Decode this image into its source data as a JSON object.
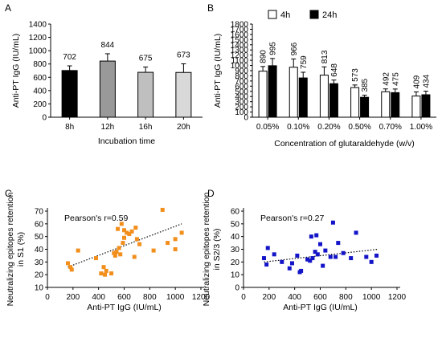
{
  "chart_data": [
    {
      "panel": "A",
      "type": "bar",
      "ylabel": "Anti-PT IgG (IU/mL)",
      "xlabel": "Incubation time",
      "ylim": [
        0,
        1400
      ],
      "yticks": [
        0,
        200,
        400,
        600,
        800,
        1000,
        1200,
        1400
      ],
      "categories": [
        "8h",
        "12h",
        "16h",
        "20h"
      ],
      "values": [
        702,
        844,
        675,
        673
      ],
      "errors": [
        70,
        110,
        80,
        130
      ],
      "colors": [
        "#000000",
        "#999999",
        "#bfbfbf",
        "#d9d9d9"
      ]
    },
    {
      "panel": "B",
      "type": "bar",
      "ylabel": "Anti-PT IgG (IU/mL)",
      "xlabel": "Concentration of glutaraldehyde (w/v)",
      "ylim": [
        0,
        1800
      ],
      "yticks": [
        0,
        100,
        200,
        300,
        400,
        500,
        600,
        700,
        800,
        900,
        1000,
        1100,
        1200,
        1300,
        1400,
        1500,
        1600,
        1700,
        1800
      ],
      "categories": [
        "0.05%",
        "0.10%",
        "0.20%",
        "0.50%",
        "0.70%",
        "1.00%"
      ],
      "legend": [
        "4h",
        "24h"
      ],
      "series": [
        {
          "name": "4h",
          "values": [
            890,
            966,
            813,
            573,
            492,
            409
          ],
          "errors": [
            90,
            160,
            160,
            50,
            55,
            80
          ],
          "color": "#ffffff"
        },
        {
          "name": "24h",
          "values": [
            995,
            759,
            648,
            385,
            475,
            434
          ],
          "errors": [
            140,
            110,
            70,
            40,
            70,
            70
          ],
          "color": "#000000"
        }
      ]
    },
    {
      "panel": "C",
      "type": "scatter",
      "ylabel_lines": [
        "Neutralizing epitopes retention",
        "in S1 (%)"
      ],
      "xlabel": "Anti-PT IgG (IU/mL)",
      "annotation": "Pearson's r=0.59",
      "xlim": [
        0,
        1200
      ],
      "ylim": [
        10,
        70
      ],
      "xticks": [
        0,
        200,
        400,
        600,
        800,
        1000,
        1200
      ],
      "yticks": [
        10,
        20,
        30,
        40,
        50,
        60,
        70
      ],
      "color": "#f28e1c",
      "trend": {
        "x": [
          160,
          1050
        ],
        "y": [
          26,
          60
        ]
      },
      "points": [
        [
          160,
          29
        ],
        [
          180,
          26
        ],
        [
          190,
          24
        ],
        [
          240,
          39
        ],
        [
          380,
          33
        ],
        [
          420,
          21
        ],
        [
          440,
          26
        ],
        [
          450,
          20
        ],
        [
          460,
          23
        ],
        [
          500,
          21
        ],
        [
          520,
          37
        ],
        [
          530,
          35
        ],
        [
          540,
          38
        ],
        [
          550,
          56
        ],
        [
          560,
          41
        ],
        [
          570,
          36
        ],
        [
          580,
          60
        ],
        [
          590,
          45
        ],
        [
          600,
          49
        ],
        [
          600,
          55
        ],
        [
          620,
          53
        ],
        [
          640,
          52
        ],
        [
          660,
          54
        ],
        [
          680,
          34
        ],
        [
          690,
          57
        ],
        [
          700,
          48
        ],
        [
          720,
          44
        ],
        [
          830,
          39
        ],
        [
          900,
          71
        ],
        [
          940,
          45
        ],
        [
          1000,
          48
        ],
        [
          1050,
          53
        ],
        [
          1000,
          40
        ]
      ]
    },
    {
      "panel": "D",
      "type": "scatter",
      "ylabel_lines": [
        "Neutralizing epitopes retention",
        "in S2/3 (%)"
      ],
      "xlabel": "Anti-PT IgG (IU/mL)",
      "annotation": "Pearson's r=0.27",
      "xlim": [
        0,
        1200
      ],
      "ylim": [
        0,
        60
      ],
      "xticks": [
        0,
        200,
        400,
        600,
        800,
        1000,
        1200
      ],
      "yticks": [
        0,
        10,
        20,
        30,
        40,
        50,
        60
      ],
      "color": "#1414c8",
      "trend": {
        "x": [
          160,
          1050
        ],
        "y": [
          20,
          30
        ]
      },
      "points": [
        [
          160,
          23
        ],
        [
          180,
          18
        ],
        [
          190,
          31
        ],
        [
          240,
          26
        ],
        [
          300,
          20
        ],
        [
          360,
          15
        ],
        [
          380,
          19
        ],
        [
          420,
          25
        ],
        [
          440,
          12
        ],
        [
          450,
          13
        ],
        [
          500,
          22
        ],
        [
          520,
          21
        ],
        [
          530,
          40
        ],
        [
          540,
          23
        ],
        [
          560,
          28
        ],
        [
          570,
          41
        ],
        [
          580,
          26
        ],
        [
          600,
          34
        ],
        [
          620,
          17
        ],
        [
          640,
          29
        ],
        [
          680,
          24
        ],
        [
          700,
          51
        ],
        [
          720,
          24
        ],
        [
          740,
          35
        ],
        [
          780,
          27
        ],
        [
          840,
          23
        ],
        [
          880,
          43
        ],
        [
          960,
          24
        ],
        [
          1000,
          20
        ],
        [
          1040,
          25
        ]
      ]
    }
  ]
}
